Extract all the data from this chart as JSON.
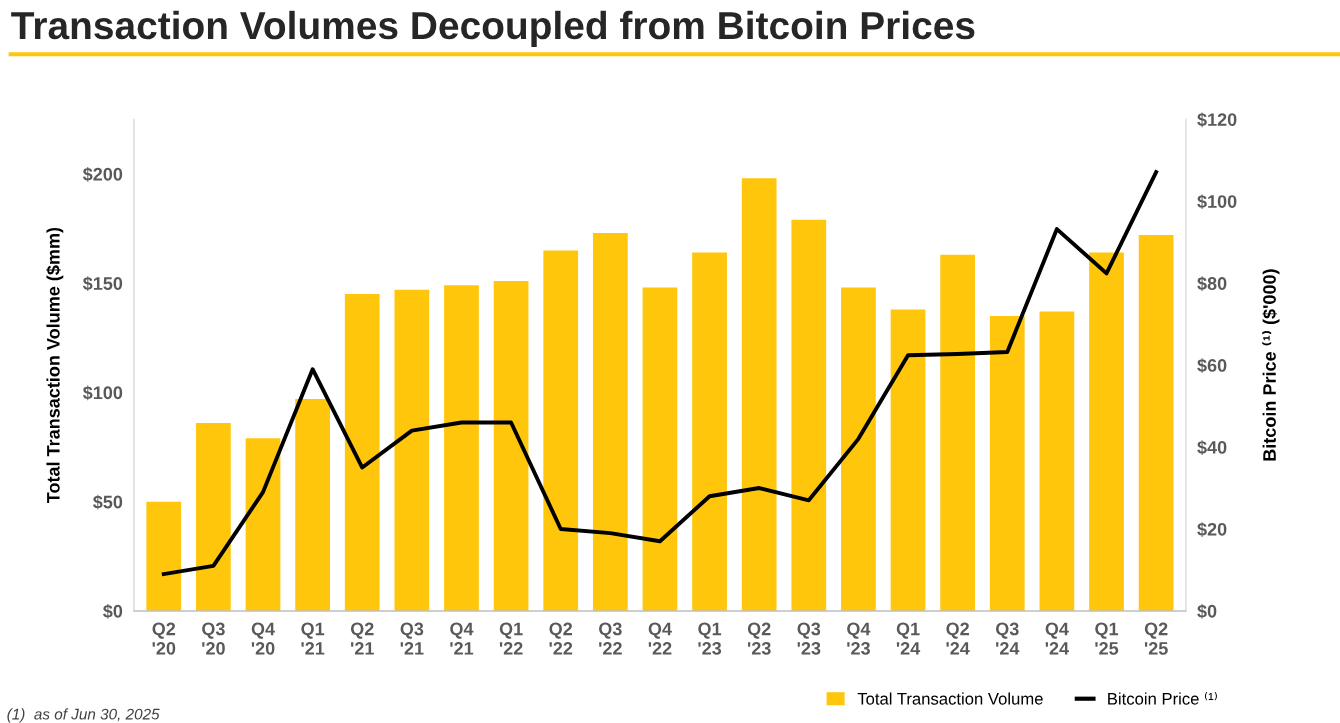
{
  "chart_data": {
    "type": "bar",
    "title": "Transaction Volumes Decoupled from Bitcoin Prices",
    "categories": [
      "Q2\n'20",
      "Q3\n'20",
      "Q4\n'20",
      "Q1\n'21",
      "Q2\n'21",
      "Q3\n'21",
      "Q4\n'21",
      "Q1\n'22",
      "Q2\n'22",
      "Q3\n'22",
      "Q4\n'22",
      "Q1\n'23",
      "Q2\n'23",
      "Q3\n'23",
      "Q4\n'23",
      "Q1\n'24",
      "Q2\n'24",
      "Q3\n'24",
      "Q4\n'24",
      "Q1\n'25",
      "Q2\n'25"
    ],
    "series": [
      {
        "name": "Total Transaction Volume",
        "color": "#ffc60b",
        "values": [
          50,
          86,
          79,
          97,
          145,
          147,
          149,
          151,
          165,
          173,
          148,
          164,
          198,
          179,
          148,
          138,
          163,
          135,
          137,
          164,
          172
        ]
      },
      {
        "name": "Bitcoin Price ⁽¹⁾",
        "type": "line",
        "axis": "y2",
        "color": "#000000",
        "values": [
          9,
          11,
          29,
          59,
          35,
          44,
          46,
          46,
          20,
          19,
          17,
          28,
          30,
          27,
          42,
          62.4,
          62.7,
          63.2,
          93.2,
          82.4,
          107.1
        ]
      }
    ],
    "ylabel": "Total Transaction Volume ($mm)",
    "y2label": "Bitcoin Price ⁽¹⁾ ($'000)",
    "ylim": [
      0,
      225
    ],
    "yticks": [
      {
        "value": 0,
        "label": "$0"
      },
      {
        "value": 50,
        "label": "$50"
      },
      {
        "value": 100,
        "label": "$100"
      },
      {
        "value": 150,
        "label": "$150"
      },
      {
        "value": 200,
        "label": "$200"
      }
    ],
    "y2lim": [
      0,
      120
    ],
    "y2ticks": [
      {
        "value": 0,
        "label": "$0"
      },
      {
        "value": 20,
        "label": "$20"
      },
      {
        "value": 40,
        "label": "$40"
      },
      {
        "value": 60,
        "label": "$60"
      },
      {
        "value": 80,
        "label": "$80"
      },
      {
        "value": 100,
        "label": "$100"
      },
      {
        "value": 120,
        "label": "$120"
      }
    ],
    "legend": "bottom right",
    "grid": false,
    "marker": "none",
    "line_style": "solid",
    "annotations": [
      "(1)  as of Jun 30, 2025"
    ]
  }
}
